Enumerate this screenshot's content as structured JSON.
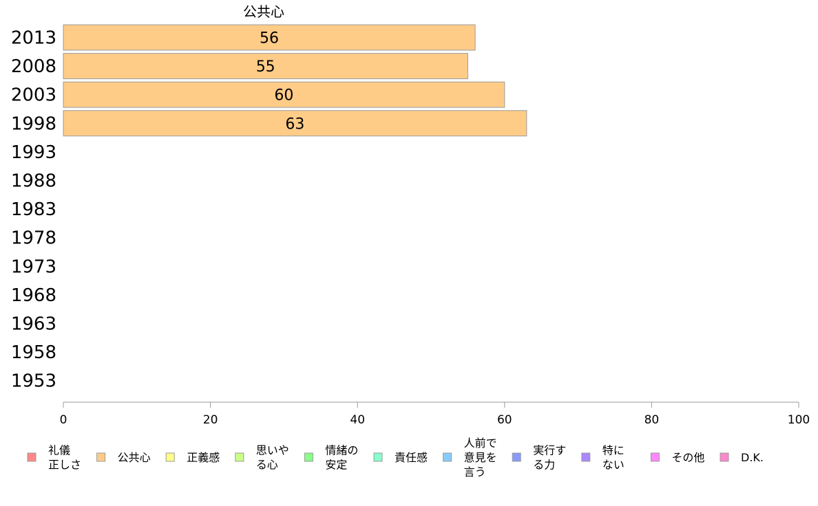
{
  "chart_data": {
    "type": "bar",
    "orientation": "horizontal",
    "title": "公共心",
    "categories": [
      "2013",
      "2008",
      "2003",
      "1998",
      "1993",
      "1988",
      "1983",
      "1978",
      "1973",
      "1968",
      "1963",
      "1958",
      "1953"
    ],
    "series": [
      {
        "name": "公共心",
        "color": "#ffcc88",
        "values": [
          56,
          55,
          60,
          63,
          null,
          null,
          null,
          null,
          null,
          null,
          null,
          null,
          null
        ],
        "labels": [
          "56",
          "55",
          "60",
          "63",
          "",
          "",
          "",
          "",
          "",
          "",
          "",
          "",
          ""
        ]
      }
    ],
    "xlim": [
      0,
      100
    ],
    "xticks": [
      0,
      20,
      40,
      60,
      80,
      100
    ],
    "xtick_labels": [
      "0",
      "20",
      "40",
      "60",
      "80",
      "100"
    ],
    "grid": false,
    "legend_position": "bottom",
    "legend": [
      {
        "label": [
          "礼儀",
          "正しさ"
        ],
        "color": "#ff8888"
      },
      {
        "label": [
          "公共心"
        ],
        "color": "#ffcc88"
      },
      {
        "label": [
          "正義感"
        ],
        "color": "#ffff88"
      },
      {
        "label": [
          "思いや",
          "る心"
        ],
        "color": "#ccff88"
      },
      {
        "label": [
          "情緒の",
          "安定"
        ],
        "color": "#88ff88"
      },
      {
        "label": [
          "責任感"
        ],
        "color": "#88ffcc"
      },
      {
        "label": [
          "人前で",
          "意見を",
          "言う"
        ],
        "color": "#88ccff"
      },
      {
        "label": [
          "実行す",
          "る力"
        ],
        "color": "#8899ff"
      },
      {
        "label": [
          "特に",
          "ない"
        ],
        "color": "#aa88ff"
      },
      {
        "label": [
          "その他"
        ],
        "color": "#ff88ff"
      },
      {
        "label": [
          "D.K."
        ],
        "color": "#ff88cc"
      }
    ]
  }
}
